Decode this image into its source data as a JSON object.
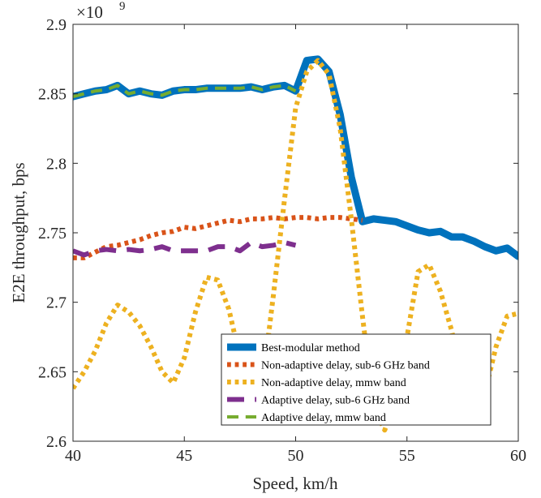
{
  "chart_data": {
    "type": "line",
    "title": "",
    "xlabel": "Speed, km/h",
    "ylabel": "E2E throughput, bps",
    "y_exponent_label": "×10",
    "y_exponent_power": "9",
    "xlim": [
      40,
      60
    ],
    "ylim": [
      2.6,
      2.9
    ],
    "grid": false,
    "legend_position": "bottom-right",
    "x_ticks": [
      40,
      45,
      50,
      55,
      60
    ],
    "x_tick_labels": [
      "40",
      "45",
      "50",
      "55",
      "60"
    ],
    "y_ticks": [
      2.6,
      2.65,
      2.7,
      2.75,
      2.8,
      2.85,
      2.9
    ],
    "y_tick_labels": [
      "2.6",
      "2.65",
      "2.7",
      "2.75",
      "2.8",
      "2.85",
      "2.9"
    ],
    "series": [
      {
        "name": "Best-modular method",
        "color": "#0072BD",
        "style": "solid",
        "width": 9,
        "x": [
          40,
          40.5,
          41,
          41.5,
          42,
          42.5,
          43,
          43.5,
          44,
          44.5,
          45,
          45.5,
          46,
          46.5,
          47,
          47.5,
          48,
          48.5,
          49,
          49.5,
          50,
          50.5,
          51,
          51.5,
          52,
          52.5,
          53,
          53.5,
          54,
          54.5,
          55,
          55.5,
          56,
          56.5,
          57,
          57.5,
          58,
          58.5,
          59,
          59.5,
          60
        ],
        "y": [
          2.848,
          2.85,
          2.852,
          2.853,
          2.856,
          2.85,
          2.852,
          2.85,
          2.849,
          2.852,
          2.853,
          2.853,
          2.854,
          2.854,
          2.854,
          2.854,
          2.855,
          2.853,
          2.855,
          2.856,
          2.852,
          2.874,
          2.875,
          2.866,
          2.835,
          2.79,
          2.758,
          2.76,
          2.759,
          2.758,
          2.755,
          2.752,
          2.75,
          2.751,
          2.747,
          2.747,
          2.744,
          2.74,
          2.737,
          2.739,
          2.733
        ]
      },
      {
        "name": "Non-adaptive delay, sub-6 GHz band",
        "color": "#D95319",
        "style": "dotted",
        "width": 6,
        "x": [
          40,
          40.5,
          41,
          41.5,
          42,
          42.5,
          43,
          43.5,
          44,
          44.5,
          45,
          45.5,
          46,
          46.5,
          47,
          47.5,
          48,
          48.5,
          49,
          49.5,
          50,
          50.5,
          51,
          51.5,
          52,
          52.5,
          53
        ],
        "y": [
          2.732,
          2.732,
          2.736,
          2.74,
          2.741,
          2.743,
          2.745,
          2.748,
          2.75,
          2.751,
          2.754,
          2.753,
          2.755,
          2.757,
          2.759,
          2.758,
          2.76,
          2.76,
          2.761,
          2.76,
          2.761,
          2.761,
          2.76,
          2.761,
          2.761,
          2.76,
          2.759
        ]
      },
      {
        "name": "Non-adaptive delay, mmw band",
        "color": "#EDB120",
        "style": "dotted",
        "width": 6,
        "x": [
          40,
          40.5,
          41,
          41.5,
          42,
          42.5,
          43,
          43.5,
          44,
          44.5,
          45,
          45.5,
          46,
          46.5,
          47,
          47.5,
          48,
          48.5,
          49,
          49.5,
          50,
          50.5,
          51,
          51.5,
          52,
          52.5,
          53,
          53.5,
          54,
          54.5,
          55,
          55.5,
          56,
          56.5,
          57,
          57.5,
          58,
          58.5,
          59,
          59.5,
          60
        ],
        "y": [
          2.638,
          2.65,
          2.665,
          2.685,
          2.698,
          2.693,
          2.683,
          2.668,
          2.65,
          2.642,
          2.66,
          2.693,
          2.718,
          2.716,
          2.695,
          2.66,
          2.627,
          2.64,
          2.705,
          2.774,
          2.84,
          2.866,
          2.874,
          2.864,
          2.825,
          2.76,
          2.69,
          2.625,
          2.608,
          2.628,
          2.675,
          2.722,
          2.727,
          2.708,
          2.68,
          2.645,
          2.622,
          2.635,
          2.668,
          2.69,
          2.692
        ]
      },
      {
        "name": "Adaptive delay, sub-6 GHz band",
        "color": "#7E2F8E",
        "style": "dashed",
        "width": 6,
        "x": [
          40,
          40.5,
          41,
          41.5,
          42,
          42.5,
          43,
          43.5,
          44,
          44.5,
          45,
          45.5,
          46,
          46.5,
          47,
          47.5,
          48,
          48.5,
          49,
          49.5,
          50
        ],
        "y": [
          2.737,
          2.734,
          2.737,
          2.738,
          2.737,
          2.738,
          2.737,
          2.738,
          2.74,
          2.737,
          2.737,
          2.737,
          2.737,
          2.74,
          2.74,
          2.737,
          2.743,
          2.74,
          2.741,
          2.743,
          2.741
        ]
      },
      {
        "name": "Adaptive delay, mmw band",
        "color": "#77AC30",
        "style": "dashed",
        "width": 4,
        "x": [
          40,
          40.5,
          41,
          41.5,
          42,
          42.5,
          43,
          43.5,
          44,
          44.5,
          45,
          45.5,
          46,
          46.5,
          47,
          47.5,
          48,
          48.5,
          49,
          49.5,
          50
        ],
        "y": [
          2.848,
          2.85,
          2.852,
          2.853,
          2.856,
          2.85,
          2.852,
          2.85,
          2.849,
          2.852,
          2.853,
          2.853,
          2.854,
          2.854,
          2.854,
          2.854,
          2.855,
          2.853,
          2.855,
          2.856,
          2.852
        ]
      }
    ]
  }
}
